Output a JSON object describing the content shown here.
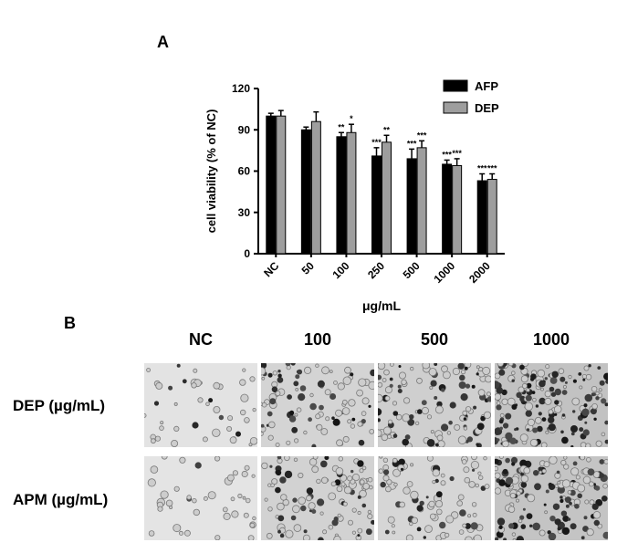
{
  "panel_a_label": "A",
  "panel_b_label": "B",
  "chart_data": {
    "type": "bar",
    "title": "",
    "xlabel": "μg/mL",
    "ylabel": "cell viability (% of NC)",
    "categories": [
      "NC",
      "50",
      "100",
      "250",
      "500",
      "1000",
      "2000"
    ],
    "ylim": [
      0,
      120
    ],
    "yticks": [
      0,
      30,
      60,
      90,
      120
    ],
    "grid": false,
    "legend_position": "top-right",
    "series": [
      {
        "name": "AFP",
        "color": "#000000",
        "values": [
          100,
          90,
          85,
          71,
          69,
          65,
          53
        ],
        "errors": [
          2,
          2,
          3,
          6,
          7,
          3,
          5
        ],
        "significance": [
          "",
          "",
          "**",
          "***",
          "***",
          "***",
          "***"
        ]
      },
      {
        "name": "DEP",
        "color": "#9e9e9e",
        "values": [
          100,
          96,
          88,
          81,
          77,
          64,
          54
        ],
        "errors": [
          4,
          7,
          6,
          5,
          5,
          5,
          4
        ],
        "significance": [
          "",
          "",
          "*",
          "**",
          "***",
          "***",
          "***"
        ]
      }
    ]
  },
  "panel_b": {
    "columns": [
      "NC",
      "100",
      "500",
      "1000"
    ],
    "rows": [
      {
        "label": "DEP (µg/mL)",
        "densities": [
          0.12,
          0.45,
          0.55,
          0.85
        ]
      },
      {
        "label": "APM (µg/mL)",
        "densities": [
          0.1,
          0.5,
          0.4,
          0.8
        ]
      }
    ]
  }
}
